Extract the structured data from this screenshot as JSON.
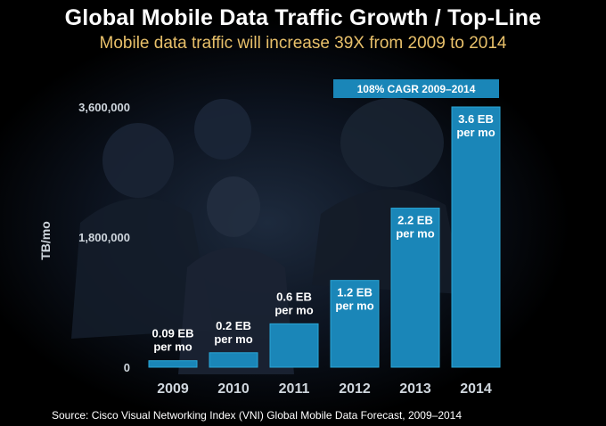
{
  "colors": {
    "bar": "#1a86b8",
    "bar_edge": "#2aa6d6",
    "title": "#ffffff",
    "subtitle": "#e8c06a",
    "annotation_bg": "#1a86b8"
  },
  "chart_data": {
    "type": "bar",
    "title": "Global Mobile Data Traffic Growth / Top-Line",
    "subtitle": "Mobile data traffic will increase 39X from 2009 to 2014",
    "categories": [
      "2009",
      "2010",
      "2011",
      "2012",
      "2013",
      "2014"
    ],
    "values": [
      90000,
      200000,
      600000,
      1200000,
      2200000,
      3600000
    ],
    "data_labels": [
      [
        "0.09 EB",
        "per mo"
      ],
      [
        "0.2 EB",
        "per mo"
      ],
      [
        "0.6 EB",
        "per mo"
      ],
      [
        "1.2 EB",
        "per mo"
      ],
      [
        "2.2 EB",
        "per mo"
      ],
      [
        "3.6 EB",
        "per mo"
      ]
    ],
    "ylabel": "TB/mo",
    "xlabel": "",
    "yticks": [
      0,
      1800000,
      3600000
    ],
    "ytick_labels": [
      "0",
      "1,800,000",
      "3,600,000"
    ],
    "ylim": [
      0,
      3600000
    ],
    "grid": false,
    "annotation": "108% CAGR 2009–2014"
  },
  "source": "Source: Cisco Visual Networking Index (VNI) Global Mobile Data Forecast, 2009–2014"
}
